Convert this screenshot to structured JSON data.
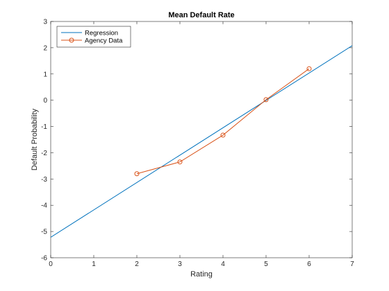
{
  "chart_data": {
    "type": "line",
    "title": "Mean Default Rate",
    "xlabel": "Rating",
    "ylabel": "Default Probability",
    "xlim": [
      0,
      7
    ],
    "ylim": [
      -6,
      3
    ],
    "xticks": [
      "0",
      "1",
      "2",
      "3",
      "4",
      "5",
      "6",
      "7"
    ],
    "yticks": [
      "-6",
      "-5",
      "-4",
      "-3",
      "-2",
      "-1",
      "0",
      "1",
      "2",
      "3"
    ],
    "grid": false,
    "legend_position": "top-left",
    "series": [
      {
        "name": "Regression",
        "x": [
          0,
          7
        ],
        "y": [
          -5.22,
          2.08
        ],
        "color": "#0072BD",
        "marker": "none"
      },
      {
        "name": "Agency Data",
        "x": [
          2,
          3,
          4,
          5,
          6
        ],
        "y": [
          -2.8,
          -2.35,
          -1.33,
          0.02,
          1.2
        ],
        "color": "#D95319",
        "marker": "circle"
      }
    ]
  }
}
